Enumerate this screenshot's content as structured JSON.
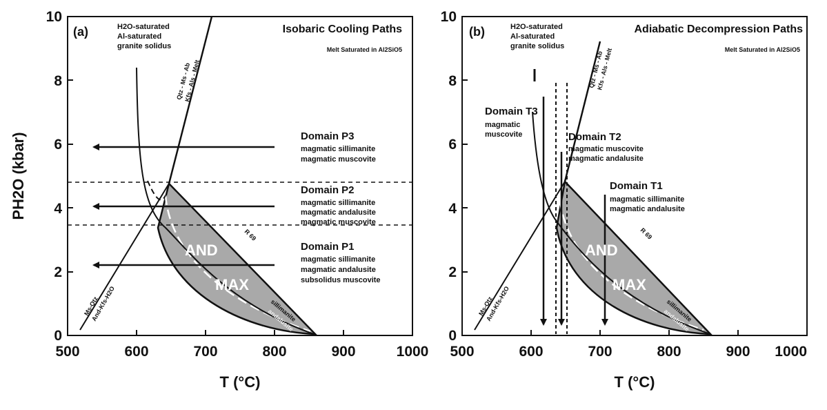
{
  "panel_a": {
    "letter": "(a)",
    "title": "Isobaric Cooling Paths",
    "subtitle": "Melt Saturated in Al2SiO5",
    "solidus_label": [
      "H2O-saturated",
      "Al-saturated",
      "granite solidus"
    ],
    "qtz_line_label": [
      "Qtz - Ms - Ab",
      "Kfs - Als - Melt"
    ],
    "ms_qtz_label": [
      "Ms-Qtz",
      "And-Kfs-H2O"
    ],
    "and_label": "AND",
    "max_label": "MAX",
    "r69_label": "R 69",
    "sill_label": "sillimanite",
    "andal_label": "andalusite",
    "domains": [
      {
        "name": "Domain P3",
        "lines": [
          "magmatic sillimanite",
          "magmatic muscovite"
        ]
      },
      {
        "name": "Domain P2",
        "lines": [
          "magmatic sillimanite",
          "magmatic andalusite",
          "magmatic muscovite"
        ]
      },
      {
        "name": "Domain P1",
        "lines": [
          "magmatic sillimanite",
          "magmatic andalusite",
          "subsolidus muscovite"
        ]
      }
    ]
  },
  "panel_b": {
    "letter": "(b)",
    "title": "Adiabatic Decompression Paths",
    "subtitle": "Melt Saturated in Al2SiO5",
    "solidus_label": [
      "H2O-saturated",
      "Al-saturated",
      "granite solidus"
    ],
    "qtz_line_label": [
      "Qtz - Ms - Ab",
      "Kfs - Als - Melt"
    ],
    "ms_qtz_label": [
      "Ms-Qtz",
      "And-Kfs-H2O"
    ],
    "and_label": "AND",
    "max_label": "MAX",
    "r69_label": "R 69",
    "sill_label": "sillimanite",
    "andal_label": "andalusite",
    "domains": [
      {
        "name": "Domain T3",
        "lines": [
          "magmatic",
          "muscovite"
        ]
      },
      {
        "name": "Domain T2",
        "lines": [
          "magmatic muscovite",
          "magmatic andalusite"
        ]
      },
      {
        "name": "Domain T1",
        "lines": [
          "magmatic sillimanite",
          "magmatic andalusite"
        ]
      }
    ]
  },
  "axes": {
    "xlabel": "T (°C)",
    "ylabel": "PH2O (kbar)",
    "xticks": [
      500,
      600,
      700,
      800,
      900,
      1000
    ],
    "yticks": [
      0,
      2,
      4,
      6,
      8,
      10
    ],
    "xlim": [
      500,
      1000
    ],
    "ylim": [
      0,
      10
    ]
  },
  "colors": {
    "line": "#111111",
    "fill": "#a9a9a9",
    "dash": "#ffffff"
  }
}
